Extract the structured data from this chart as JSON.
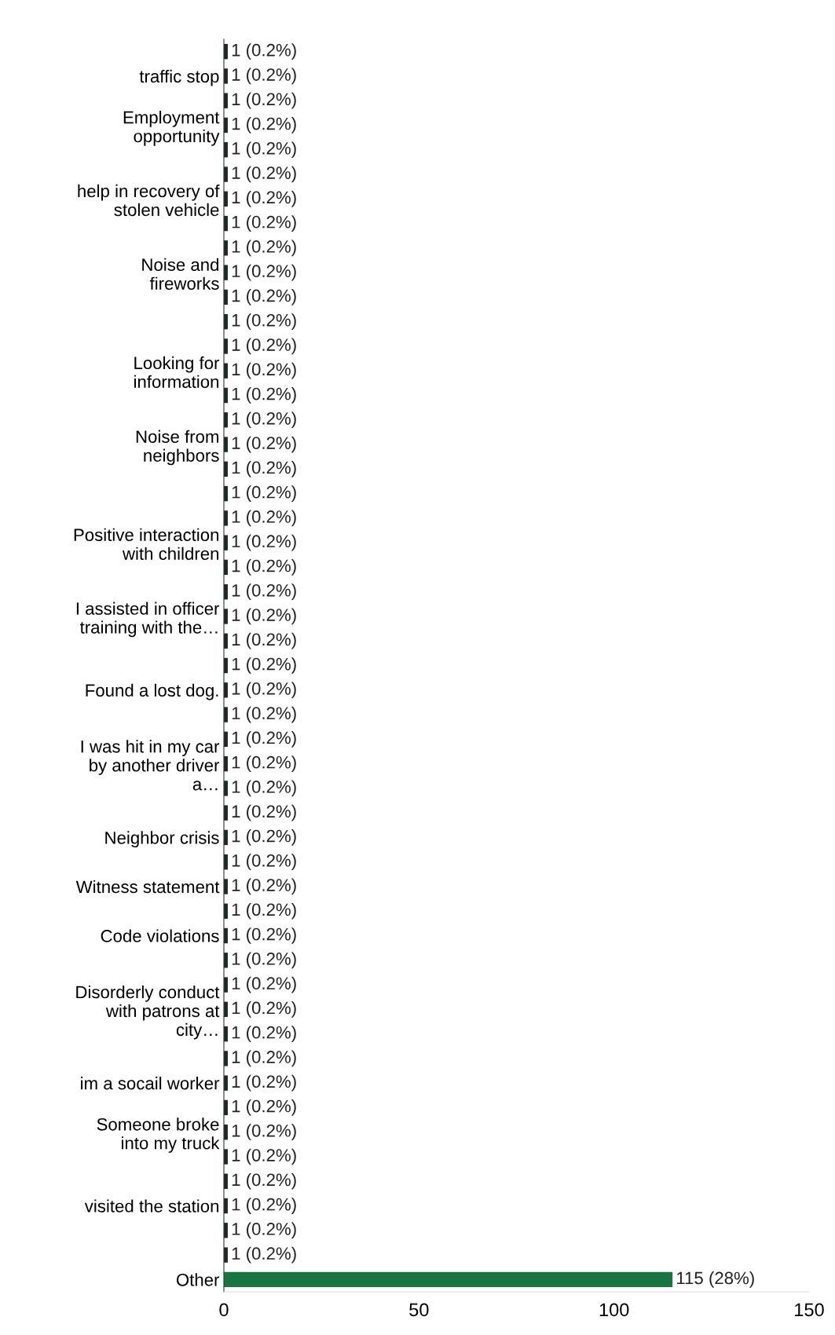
{
  "chart_data": {
    "type": "bar",
    "orientation": "horizontal",
    "categories": [
      null,
      "traffic stop",
      null,
      "Employment\nopportunity",
      null,
      null,
      "help in recovery of\nstolen vehicle",
      null,
      null,
      "Noise and\nfireworks",
      null,
      null,
      null,
      "Looking for\ninformation",
      null,
      null,
      "Noise from\nneighbors",
      null,
      null,
      null,
      "Positive interaction\nwith children",
      null,
      null,
      "I assisted in officer\ntraining with the…",
      null,
      null,
      "Found a lost dog.",
      null,
      null,
      "I was hit in my car\nby another driver\na…",
      null,
      null,
      "Neighbor crisis",
      null,
      "Witness statement",
      null,
      "Code violations",
      null,
      null,
      "Disorderly conduct\nwith patrons at\ncity…",
      null,
      null,
      "im a socail worker",
      null,
      "Someone broke\ninto my truck",
      null,
      null,
      "visited the station",
      null,
      null,
      "Other"
    ],
    "values": [
      1,
      1,
      1,
      1,
      1,
      1,
      1,
      1,
      1,
      1,
      1,
      1,
      1,
      1,
      1,
      1,
      1,
      1,
      1,
      1,
      1,
      1,
      1,
      1,
      1,
      1,
      1,
      1,
      1,
      1,
      1,
      1,
      1,
      1,
      1,
      1,
      1,
      1,
      1,
      1,
      1,
      1,
      1,
      1,
      1,
      1,
      1,
      1,
      1,
      1,
      115
    ],
    "colors": [
      "#202a24",
      "#202a24",
      "#202a24",
      "#202a24",
      "#202a24",
      "#202a24",
      "#202a24",
      "#202a24",
      "#202a24",
      "#202a24",
      "#202a24",
      "#202a24",
      "#202a24",
      "#202a24",
      "#202a24",
      "#202a24",
      "#202a24",
      "#202a24",
      "#202a24",
      "#202a24",
      "#202a24",
      "#202a24",
      "#202a24",
      "#202a24",
      "#202a24",
      "#202a24",
      "#202a24",
      "#202a24",
      "#202a24",
      "#202a24",
      "#202a24",
      "#202a24",
      "#202a24",
      "#202a24",
      "#202a24",
      "#202a24",
      "#202a24",
      "#202a24",
      "#202a24",
      "#202a24",
      "#202a24",
      "#202a24",
      "#202a24",
      "#202a24",
      "#202a24",
      "#202a24",
      "#202a24",
      "#202a24",
      "#202a24",
      "#202a24",
      "#18753f"
    ],
    "value_labels": [
      "1 (0.2%)",
      "1 (0.2%)",
      "1 (0.2%)",
      "1 (0.2%)",
      "1 (0.2%)",
      "1 (0.2%)",
      "1 (0.2%)",
      "1 (0.2%)",
      "1 (0.2%)",
      "1 (0.2%)",
      "1 (0.2%)",
      "1 (0.2%)",
      "1 (0.2%)",
      "1 (0.2%)",
      "1 (0.2%)",
      "1 (0.2%)",
      "1 (0.2%)",
      "1 (0.2%)",
      "1 (0.2%)",
      "1 (0.2%)",
      "1 (0.2%)",
      "1 (0.2%)",
      "1 (0.2%)",
      "1 (0.2%)",
      "1 (0.2%)",
      "1 (0.2%)",
      "1 (0.2%)",
      "1 (0.2%)",
      "1 (0.2%)",
      "1 (0.2%)",
      "1 (0.2%)",
      "1 (0.2%)",
      "1 (0.2%)",
      "1 (0.2%)",
      "1 (0.2%)",
      "1 (0.2%)",
      "1 (0.2%)",
      "1 (0.2%)",
      "1 (0.2%)",
      "1 (0.2%)",
      "1 (0.2%)",
      "1 (0.2%)",
      "1 (0.2%)",
      "1 (0.2%)",
      "1 (0.2%)",
      "1 (0.2%)",
      "1 (0.2%)",
      "1 (0.2%)",
      "1 (0.2%)",
      "1 (0.2%)",
      "115 (28%)"
    ],
    "xlim": [
      0,
      150
    ],
    "xticks": [
      0,
      50,
      100,
      150
    ],
    "grid": false,
    "legend": false
  }
}
